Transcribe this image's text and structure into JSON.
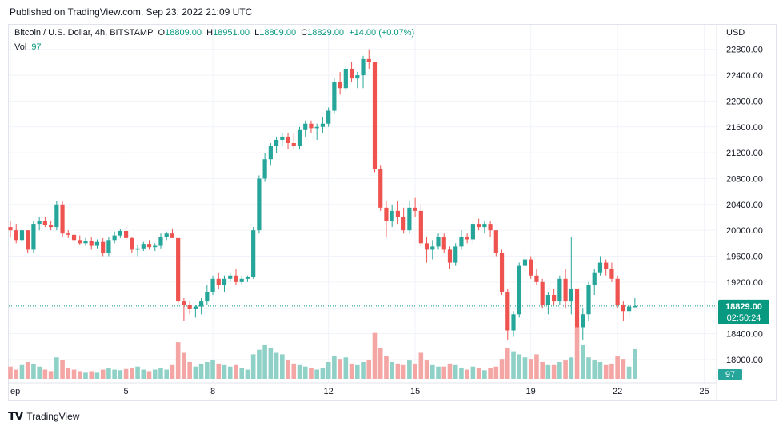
{
  "published": "Published on TradingView.com, Sep 23, 2022 21:09 UTC",
  "legend": {
    "symbol": "Bitcoin / U.S. Dollar, 4h, BITSTAMP",
    "o_label": "O",
    "o": "18809.00",
    "h_label": "H",
    "h": "18951.00",
    "l_label": "L",
    "l": "18809.00",
    "c_label": "C",
    "c": "18829.00",
    "change": "+14.00 (+0.07%)",
    "vol_label": "Vol",
    "vol": "97"
  },
  "footer": {
    "brand": "TradingView"
  },
  "colors": {
    "up": "#26a69a",
    "down": "#ef5350",
    "up_vol": "#8fd1c7",
    "down_vol": "#f3a6a4",
    "price_tag": "#089981",
    "grid": "#f0f3fa"
  },
  "chart_data": {
    "type": "candlestick",
    "currency_label": "USD",
    "y_ticks": [
      "22800.00",
      "22400.00",
      "22000.00",
      "21600.00",
      "21200.00",
      "20800.00",
      "20400.00",
      "20000.00",
      "19600.00",
      "19200.00",
      "18800.00",
      "18400.00",
      "18000.00"
    ],
    "ylim": [
      17640,
      23180
    ],
    "x_ticks": [
      {
        "label": "ep",
        "index": 0
      },
      {
        "label": "5",
        "index": 20
      },
      {
        "label": "8",
        "index": 35
      },
      {
        "label": "12",
        "index": 55
      },
      {
        "label": "15",
        "index": 70
      },
      {
        "label": "19",
        "index": 90
      },
      {
        "label": "22",
        "index": 105
      },
      {
        "label": "25",
        "index": 120
      }
    ],
    "last_price": "18829.00",
    "countdown": "02:50:24",
    "last_volume": "97",
    "candles": [
      [
        20050,
        20150,
        19900,
        20000,
        40
      ],
      [
        20000,
        20100,
        19800,
        19850,
        30
      ],
      [
        19850,
        20050,
        19800,
        20000,
        45
      ],
      [
        20000,
        20000,
        19650,
        19700,
        55
      ],
      [
        19700,
        20150,
        19650,
        20100,
        48
      ],
      [
        20100,
        20200,
        20000,
        20150,
        40
      ],
      [
        20150,
        20200,
        20050,
        20080,
        30
      ],
      [
        20080,
        20150,
        20000,
        20050,
        25
      ],
      [
        20050,
        20450,
        20000,
        20400,
        70
      ],
      [
        20400,
        20450,
        19900,
        19950,
        60
      ],
      [
        19950,
        20000,
        19880,
        19930,
        35
      ],
      [
        19930,
        19970,
        19820,
        19850,
        30
      ],
      [
        19850,
        19920,
        19780,
        19800,
        25
      ],
      [
        19800,
        19880,
        19760,
        19840,
        20
      ],
      [
        19840,
        19900,
        19700,
        19760,
        25
      ],
      [
        19760,
        19860,
        19720,
        19820,
        20
      ],
      [
        19820,
        19880,
        19600,
        19650,
        30
      ],
      [
        19650,
        19900,
        19600,
        19850,
        35
      ],
      [
        19850,
        19980,
        19800,
        19920,
        30
      ],
      [
        19920,
        20020,
        19880,
        19990,
        28
      ],
      [
        19990,
        20050,
        19850,
        19880,
        32
      ],
      [
        19880,
        19900,
        19650,
        19700,
        35
      ],
      [
        19700,
        19780,
        19600,
        19720,
        40
      ],
      [
        19720,
        19820,
        19680,
        19790,
        30
      ],
      [
        19790,
        19850,
        19700,
        19740,
        25
      ],
      [
        19740,
        19800,
        19680,
        19760,
        30
      ],
      [
        19760,
        19950,
        19720,
        19900,
        35
      ],
      [
        19900,
        19980,
        19850,
        19950,
        30
      ],
      [
        19950,
        20030,
        19900,
        19880,
        45
      ],
      [
        19880,
        19880,
        18850,
        18900,
        120
      ],
      [
        18900,
        18950,
        18600,
        18850,
        85
      ],
      [
        18850,
        18900,
        18700,
        18780,
        55
      ],
      [
        18780,
        18850,
        18650,
        18820,
        40
      ],
      [
        18820,
        18950,
        18700,
        18900,
        50
      ],
      [
        18900,
        19150,
        18850,
        19050,
        55
      ],
      [
        19050,
        19300,
        19000,
        19250,
        60
      ],
      [
        19250,
        19350,
        19100,
        19150,
        50
      ],
      [
        19150,
        19300,
        19050,
        19250,
        45
      ],
      [
        19250,
        19350,
        19200,
        19300,
        40
      ],
      [
        19300,
        19400,
        19150,
        19200,
        45
      ],
      [
        19200,
        19300,
        19150,
        19250,
        35
      ],
      [
        19250,
        19300,
        19200,
        19280,
        30
      ],
      [
        19280,
        20050,
        19250,
        20000,
        80
      ],
      [
        20000,
        20850,
        19950,
        20800,
        95
      ],
      [
        20800,
        21200,
        20750,
        21100,
        110
      ],
      [
        21100,
        21350,
        21000,
        21300,
        100
      ],
      [
        21300,
        21450,
        21200,
        21400,
        85
      ],
      [
        21400,
        21500,
        21300,
        21450,
        80
      ],
      [
        21450,
        21500,
        21250,
        21350,
        60
      ],
      [
        21350,
        21500,
        21250,
        21300,
        50
      ],
      [
        21300,
        21600,
        21250,
        21550,
        45
      ],
      [
        21550,
        21700,
        21450,
        21650,
        40
      ],
      [
        21650,
        21700,
        21500,
        21580,
        35
      ],
      [
        21580,
        21650,
        21400,
        21600,
        30
      ],
      [
        21600,
        21750,
        21500,
        21650,
        35
      ],
      [
        21650,
        21900,
        21600,
        21850,
        55
      ],
      [
        21850,
        22350,
        21800,
        22300,
        75
      ],
      [
        22300,
        22450,
        22100,
        22200,
        65
      ],
      [
        22200,
        22550,
        22150,
        22500,
        70
      ],
      [
        22500,
        22600,
        22300,
        22350,
        50
      ],
      [
        22350,
        22450,
        22200,
        22400,
        45
      ],
      [
        22400,
        22700,
        22200,
        22650,
        55
      ],
      [
        22650,
        22800,
        22500,
        22600,
        60
      ],
      [
        22600,
        22600,
        20900,
        20950,
        150
      ],
      [
        20950,
        21000,
        20300,
        20350,
        100
      ],
      [
        20350,
        20450,
        19900,
        20150,
        75
      ],
      [
        20150,
        20400,
        20050,
        20300,
        55
      ],
      [
        20300,
        20450,
        20100,
        20200,
        50
      ],
      [
        20200,
        20350,
        19950,
        20000,
        45
      ],
      [
        20000,
        20450,
        19950,
        20350,
        60
      ],
      [
        20350,
        20500,
        20200,
        20300,
        50
      ],
      [
        20300,
        20400,
        19750,
        19800,
        85
      ],
      [
        19800,
        19900,
        19500,
        19700,
        60
      ],
      [
        19700,
        19850,
        19550,
        19750,
        45
      ],
      [
        19750,
        19950,
        19700,
        19900,
        40
      ],
      [
        19900,
        19950,
        19650,
        19700,
        40
      ],
      [
        19700,
        19750,
        19400,
        19500,
        50
      ],
      [
        19500,
        19800,
        19450,
        19750,
        45
      ],
      [
        19750,
        20000,
        19700,
        19900,
        35
      ],
      [
        19900,
        19950,
        19800,
        19860,
        30
      ],
      [
        19860,
        20150,
        19800,
        20100,
        40
      ],
      [
        20100,
        20180,
        20000,
        20050,
        35
      ],
      [
        20050,
        20150,
        19950,
        20100,
        28
      ],
      [
        20100,
        20150,
        19900,
        20000,
        35
      ],
      [
        20000,
        20000,
        19600,
        19650,
        40
      ],
      [
        19650,
        19700,
        19000,
        19050,
        65
      ],
      [
        19050,
        19100,
        18300,
        18450,
        100
      ],
      [
        18450,
        18750,
        18350,
        18700,
        90
      ],
      [
        18700,
        19500,
        18650,
        19450,
        80
      ],
      [
        19450,
        19650,
        19350,
        19550,
        70
      ],
      [
        19550,
        19600,
        19250,
        19300,
        65
      ],
      [
        19300,
        19400,
        19150,
        19200,
        80
      ],
      [
        19200,
        19250,
        18800,
        18850,
        55
      ],
      [
        18850,
        19050,
        18700,
        19000,
        45
      ],
      [
        19000,
        19100,
        18850,
        18900,
        45
      ],
      [
        18900,
        19300,
        18850,
        19250,
        55
      ],
      [
        19250,
        19400,
        18800,
        18900,
        60
      ],
      [
        18900,
        19900,
        18700,
        19100,
        70
      ],
      [
        19100,
        19200,
        18400,
        18500,
        170
      ],
      [
        18500,
        18800,
        18300,
        18700,
        110
      ],
      [
        18700,
        19200,
        18600,
        19150,
        70
      ],
      [
        19150,
        19400,
        19000,
        19350,
        60
      ],
      [
        19350,
        19600,
        19300,
        19500,
        55
      ],
      [
        19500,
        19550,
        19300,
        19400,
        45
      ],
      [
        19400,
        19500,
        19200,
        19250,
        50
      ],
      [
        19250,
        19300,
        18800,
        18850,
        75
      ],
      [
        18850,
        18900,
        18600,
        18750,
        65
      ],
      [
        18750,
        18850,
        18650,
        18820,
        40
      ],
      [
        18809,
        18951,
        18809,
        18829,
        97
      ]
    ]
  }
}
